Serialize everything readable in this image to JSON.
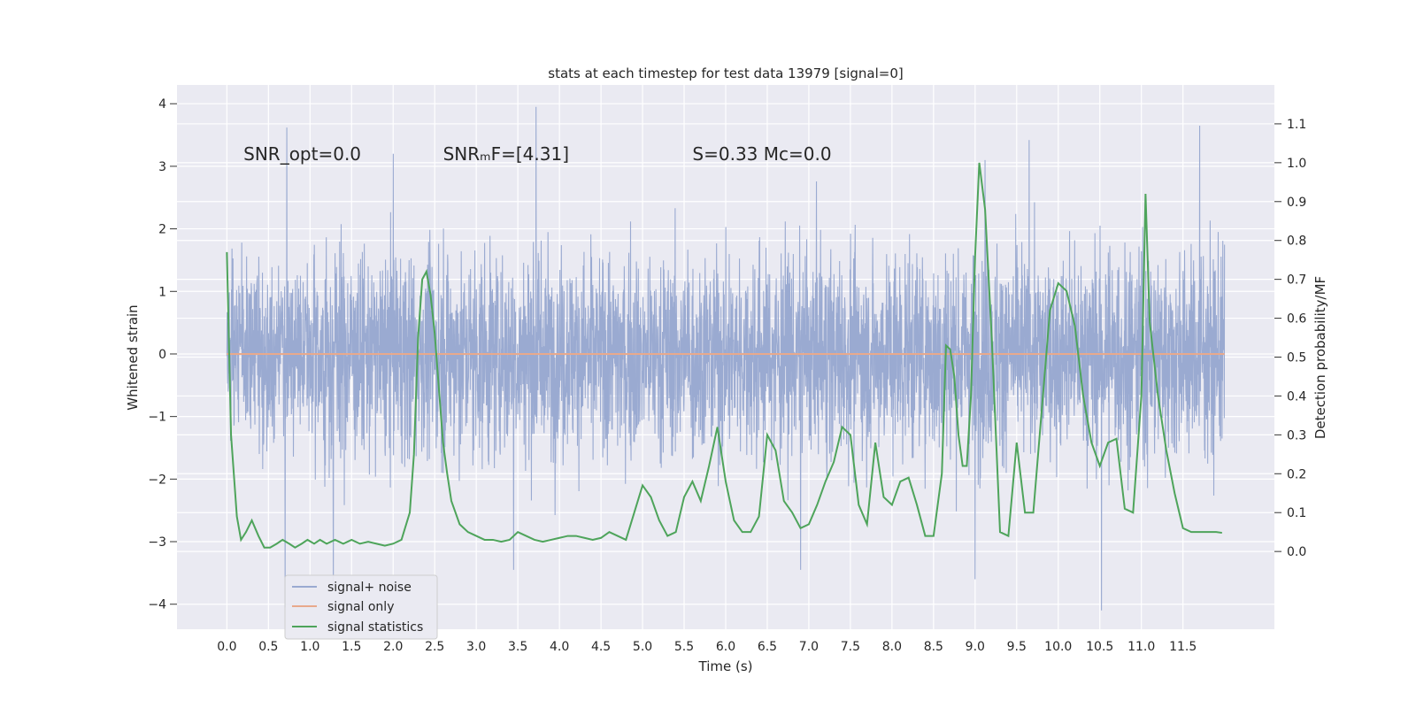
{
  "chart_data": {
    "type": "line",
    "title": "stats at each timestep for test data 13979 [signal=0]",
    "xlabel": "Time (s)",
    "ylabel": "Whitened strain",
    "y2label": "Detection probability/MF",
    "xlim": [
      -0.6,
      12.6
    ],
    "ylim": [
      -4.4,
      4.3
    ],
    "y2lim": [
      -0.2,
      1.2
    ],
    "x_ticks": [
      0.0,
      0.5,
      1.0,
      1.5,
      2.0,
      2.5,
      3.0,
      3.5,
      4.0,
      4.5,
      5.0,
      5.5,
      6.0,
      6.5,
      7.0,
      7.5,
      8.0,
      8.5,
      9.0,
      9.5,
      10.0,
      10.5,
      11.0,
      11.5
    ],
    "x_tick_labels": [
      "0.0",
      "0.5",
      "1.0",
      "1.5",
      "2.0",
      "2.5",
      "3.0",
      "3.5",
      "4.0",
      "4.5",
      "5.0",
      "5.5",
      "6.0",
      "6.5",
      "7.0",
      "7.5",
      "8.0",
      "8.5",
      "9.0",
      "9.5",
      "10.0",
      "10.5",
      "11.0",
      "11.5"
    ],
    "y_ticks": [
      -4,
      -3,
      -2,
      -1,
      0,
      1,
      2,
      3,
      4
    ],
    "y_tick_labels": [
      "−4",
      "−3",
      "−2",
      "−1",
      "0",
      "1",
      "2",
      "3",
      "4"
    ],
    "y2_ticks": [
      0.0,
      0.1,
      0.2,
      0.3,
      0.4,
      0.5,
      0.6,
      0.7,
      0.8,
      0.9,
      1.0,
      1.1
    ],
    "y2_tick_labels": [
      "0.0",
      "0.1",
      "0.2",
      "0.3",
      "0.4",
      "0.5",
      "0.6",
      "0.7",
      "0.8",
      "0.9",
      "1.0",
      "1.1"
    ],
    "grid": true,
    "legend_position": "lower-left",
    "annotations": [
      {
        "id": "snr-opt",
        "text": "SNR_opt=0.0",
        "x": 0.2,
        "y": 3.1
      },
      {
        "id": "snr-mf",
        "text": "SNRₘF=[4.31]",
        "x": 2.6,
        "y": 3.1
      },
      {
        "id": "s-mc",
        "text": "S=0.33   Mᴄ=0.0",
        "x": 5.6,
        "y": 3.1
      }
    ],
    "series": [
      {
        "name": "signal+ noise",
        "axis": "left",
        "color": "#9aaad1",
        "x_range": [
          0.0,
          12.0
        ],
        "typical_band": [
          -2.0,
          2.0
        ],
        "min": -4.1,
        "max": 3.95,
        "peaks": [
          {
            "x": 0.72,
            "y": 3.62
          },
          {
            "x": 3.72,
            "y": 3.95
          },
          {
            "x": 9.65,
            "y": 3.42
          },
          {
            "x": 11.7,
            "y": 3.65
          },
          {
            "x": 2.0,
            "y": 3.2
          },
          {
            "x": 9.12,
            "y": 3.1
          },
          {
            "x": 0.7,
            "y": -4.05
          },
          {
            "x": 1.28,
            "y": -3.75
          },
          {
            "x": 10.52,
            "y": -4.1
          },
          {
            "x": 9.0,
            "y": -3.6
          },
          {
            "x": 3.45,
            "y": -3.45
          },
          {
            "x": 6.9,
            "y": -3.45
          }
        ]
      },
      {
        "name": "signal only",
        "axis": "left",
        "color": "#e8a98c",
        "x": [
          0.0,
          12.0
        ],
        "y": [
          0.0,
          0.0
        ]
      },
      {
        "name": "signal statistics",
        "axis": "right",
        "color": "#4ea45b",
        "x": [
          0.0,
          0.05,
          0.12,
          0.17,
          0.23,
          0.3,
          0.38,
          0.45,
          0.52,
          0.6,
          0.67,
          0.75,
          0.82,
          0.9,
          0.97,
          1.05,
          1.12,
          1.2,
          1.3,
          1.4,
          1.5,
          1.6,
          1.7,
          1.8,
          1.9,
          2.0,
          2.1,
          2.2,
          2.25,
          2.3,
          2.35,
          2.4,
          2.45,
          2.5,
          2.55,
          2.6,
          2.65,
          2.7,
          2.8,
          2.9,
          3.0,
          3.1,
          3.2,
          3.3,
          3.4,
          3.5,
          3.6,
          3.7,
          3.8,
          3.9,
          4.0,
          4.1,
          4.2,
          4.3,
          4.4,
          4.5,
          4.6,
          4.7,
          4.8,
          4.9,
          5.0,
          5.1,
          5.2,
          5.3,
          5.4,
          5.5,
          5.6,
          5.7,
          5.8,
          5.9,
          6.0,
          6.1,
          6.2,
          6.3,
          6.4,
          6.5,
          6.6,
          6.7,
          6.8,
          6.9,
          7.0,
          7.1,
          7.2,
          7.3,
          7.4,
          7.5,
          7.6,
          7.7,
          7.8,
          7.9,
          8.0,
          8.1,
          8.2,
          8.3,
          8.4,
          8.5,
          8.6,
          8.65,
          8.7,
          8.75,
          8.8,
          8.85,
          8.9,
          8.95,
          9.0,
          9.05,
          9.12,
          9.2,
          9.3,
          9.4,
          9.5,
          9.6,
          9.7,
          9.8,
          9.9,
          10.0,
          10.1,
          10.2,
          10.3,
          10.4,
          10.5,
          10.6,
          10.7,
          10.8,
          10.9,
          11.0,
          11.05,
          11.1,
          11.2,
          11.3,
          11.4,
          11.5,
          11.6,
          11.7,
          11.8,
          11.9,
          11.97
        ],
        "y": [
          0.77,
          0.3,
          0.09,
          0.03,
          0.05,
          0.08,
          0.04,
          0.01,
          0.01,
          0.02,
          0.03,
          0.02,
          0.01,
          0.02,
          0.03,
          0.02,
          0.03,
          0.02,
          0.03,
          0.02,
          0.03,
          0.02,
          0.025,
          0.02,
          0.015,
          0.02,
          0.03,
          0.1,
          0.25,
          0.55,
          0.7,
          0.72,
          0.66,
          0.56,
          0.42,
          0.28,
          0.2,
          0.13,
          0.07,
          0.05,
          0.04,
          0.03,
          0.03,
          0.025,
          0.03,
          0.05,
          0.04,
          0.03,
          0.025,
          0.03,
          0.035,
          0.04,
          0.04,
          0.035,
          0.03,
          0.035,
          0.05,
          0.04,
          0.03,
          0.1,
          0.17,
          0.14,
          0.08,
          0.04,
          0.05,
          0.14,
          0.18,
          0.13,
          0.22,
          0.32,
          0.18,
          0.08,
          0.05,
          0.05,
          0.09,
          0.3,
          0.26,
          0.13,
          0.1,
          0.06,
          0.07,
          0.12,
          0.18,
          0.23,
          0.32,
          0.3,
          0.12,
          0.07,
          0.28,
          0.14,
          0.12,
          0.18,
          0.19,
          0.12,
          0.04,
          0.04,
          0.2,
          0.53,
          0.52,
          0.45,
          0.3,
          0.22,
          0.22,
          0.4,
          0.76,
          1.0,
          0.88,
          0.55,
          0.05,
          0.04,
          0.28,
          0.1,
          0.1,
          0.36,
          0.62,
          0.69,
          0.67,
          0.58,
          0.4,
          0.28,
          0.22,
          0.28,
          0.29,
          0.11,
          0.1,
          0.4,
          0.92,
          0.59,
          0.4,
          0.26,
          0.15,
          0.06,
          0.05,
          0.05,
          0.05,
          0.05,
          0.048
        ]
      }
    ]
  }
}
